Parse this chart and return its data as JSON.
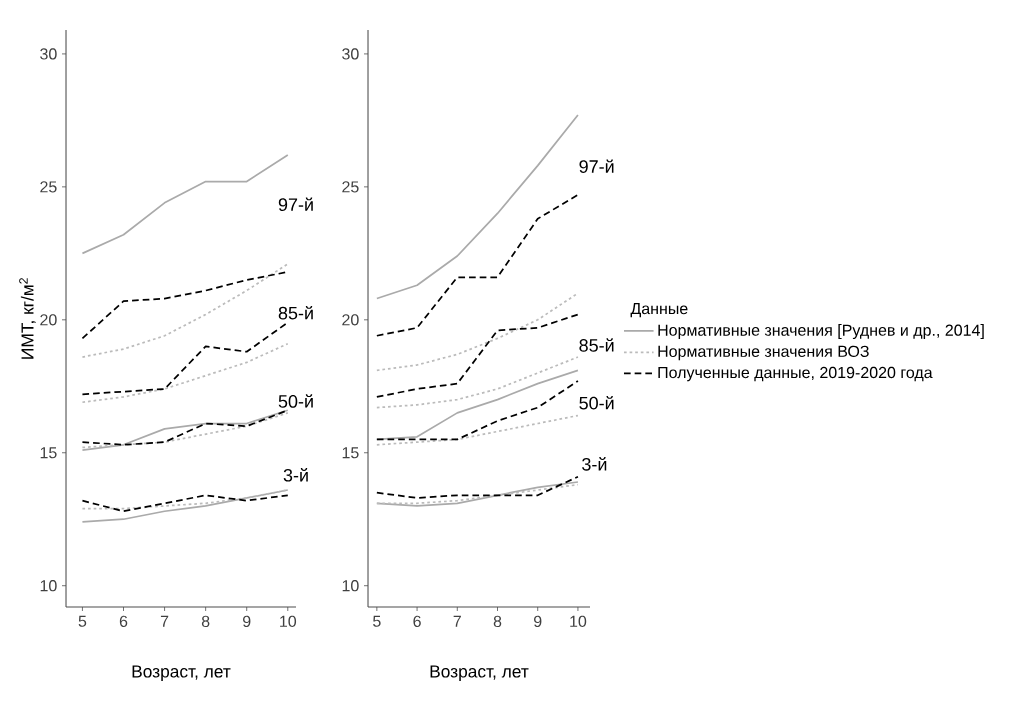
{
  "chart_data": [
    {
      "type": "line",
      "xlabel": "Возраст, лет",
      "ylabel": "ИМТ, кг/м$^{2}$",
      "x": [
        5,
        6,
        7,
        8,
        9,
        10
      ],
      "xlim": [
        4.6,
        10.2
      ],
      "ylim": [
        9.2,
        30.9
      ],
      "xticks": [
        5,
        6,
        7,
        8,
        9,
        10
      ],
      "yticks": [
        10,
        15,
        20,
        25,
        30
      ],
      "series": [
        {
          "color": "#aaaaaa",
          "line_style": "solid",
          "values": [
            22.5,
            23.2,
            24.4,
            25.2,
            25.2,
            26.2
          ]
        },
        {
          "color": "#aaaaaa",
          "line_style": "solid",
          "values": [
            15.1,
            15.3,
            15.9,
            16.1,
            16.1,
            16.6
          ]
        },
        {
          "color": "#aaaaaa",
          "line_style": "solid",
          "values": [
            12.4,
            12.5,
            12.8,
            13.0,
            13.3,
            13.6
          ]
        },
        {
          "color": "#bbbbbb",
          "line_style": "dotted",
          "values": [
            18.6,
            18.9,
            19.4,
            20.2,
            21.1,
            22.1
          ]
        },
        {
          "color": "#bbbbbb",
          "line_style": "dotted",
          "values": [
            16.9,
            17.1,
            17.4,
            17.9,
            18.4,
            19.1
          ]
        },
        {
          "color": "#bbbbbb",
          "line_style": "dotted",
          "values": [
            15.2,
            15.3,
            15.4,
            15.7,
            16.0,
            16.5
          ]
        },
        {
          "color": "#bbbbbb",
          "line_style": "dotted",
          "values": [
            12.9,
            12.9,
            13.0,
            13.1,
            13.3,
            13.6
          ]
        },
        {
          "color": "#000000",
          "line_style": "dashed",
          "values": [
            19.3,
            20.7,
            20.8,
            21.1,
            21.5,
            21.8
          ]
        },
        {
          "color": "#000000",
          "line_style": "dashed",
          "values": [
            17.2,
            17.3,
            17.4,
            19.0,
            18.8,
            19.9
          ]
        },
        {
          "color": "#000000",
          "line_style": "dashed",
          "values": [
            15.4,
            15.3,
            15.4,
            16.1,
            16.0,
            16.6
          ]
        },
        {
          "color": "#000000",
          "line_style": "dashed",
          "values": [
            13.2,
            12.8,
            13.1,
            13.4,
            13.2,
            13.4
          ]
        }
      ],
      "annotations": [
        "97-й",
        "85-й",
        "50-й",
        "3-й"
      ]
    },
    {
      "type": "line",
      "xlabel": "Возраст, лет",
      "x": [
        5,
        6,
        7,
        8,
        9,
        10
      ],
      "xlim": [
        4.78,
        10.3
      ],
      "ylim": [
        9.2,
        30.9
      ],
      "xticks": [
        5,
        6,
        7,
        8,
        9,
        10
      ],
      "yticks": [
        10,
        15,
        20,
        25,
        30
      ],
      "legend": "right",
      "legend_title": "Данные",
      "series": [
        {
          "name": "Нормативные значения [Руднев и др., 2014]",
          "color": "#aaaaaa",
          "line_style": "solid",
          "values": [
            20.8,
            21.3,
            22.4,
            24.0,
            25.8,
            27.7
          ]
        },
        {
          "name": "Нормативные значения ВОЗ",
          "color": "#bbbbbb",
          "line_style": "dotted",
          "values": [
            18.1,
            18.3,
            18.7,
            19.3,
            20.0,
            21.0
          ]
        },
        {
          "name": "Полученные данные, 2019-2020 года",
          "color": "#000000",
          "line_style": "dashed",
          "values": [
            19.4,
            19.7,
            21.6,
            21.6,
            23.8,
            24.7
          ]
        },
        {
          "color": "#aaaaaa",
          "line_style": "solid",
          "values": [
            15.5,
            15.6,
            16.5,
            17.0,
            17.6,
            18.1
          ]
        },
        {
          "color": "#aaaaaa",
          "line_style": "solid",
          "values": [
            13.1,
            13.0,
            13.1,
            13.4,
            13.7,
            13.9
          ]
        },
        {
          "color": "#bbbbbb",
          "line_style": "dotted",
          "values": [
            16.7,
            16.8,
            17.0,
            17.4,
            18.0,
            18.6
          ]
        },
        {
          "color": "#bbbbbb",
          "line_style": "dotted",
          "values": [
            15.3,
            15.4,
            15.5,
            15.8,
            16.1,
            16.4
          ]
        },
        {
          "color": "#bbbbbb",
          "line_style": "dotted",
          "values": [
            13.1,
            13.1,
            13.2,
            13.4,
            13.6,
            13.8
          ]
        },
        {
          "color": "#000000",
          "line_style": "dashed",
          "values": [
            17.1,
            17.4,
            17.6,
            19.6,
            19.7,
            20.2
          ]
        },
        {
          "color": "#000000",
          "line_style": "dashed",
          "values": [
            15.5,
            15.5,
            15.5,
            16.2,
            16.7,
            17.7
          ]
        },
        {
          "color": "#000000",
          "line_style": "dashed",
          "values": [
            13.5,
            13.3,
            13.4,
            13.4,
            13.4,
            14.1
          ]
        }
      ],
      "annotations": [
        "97-й",
        "85-й",
        "50-й",
        "3-й"
      ]
    }
  ]
}
